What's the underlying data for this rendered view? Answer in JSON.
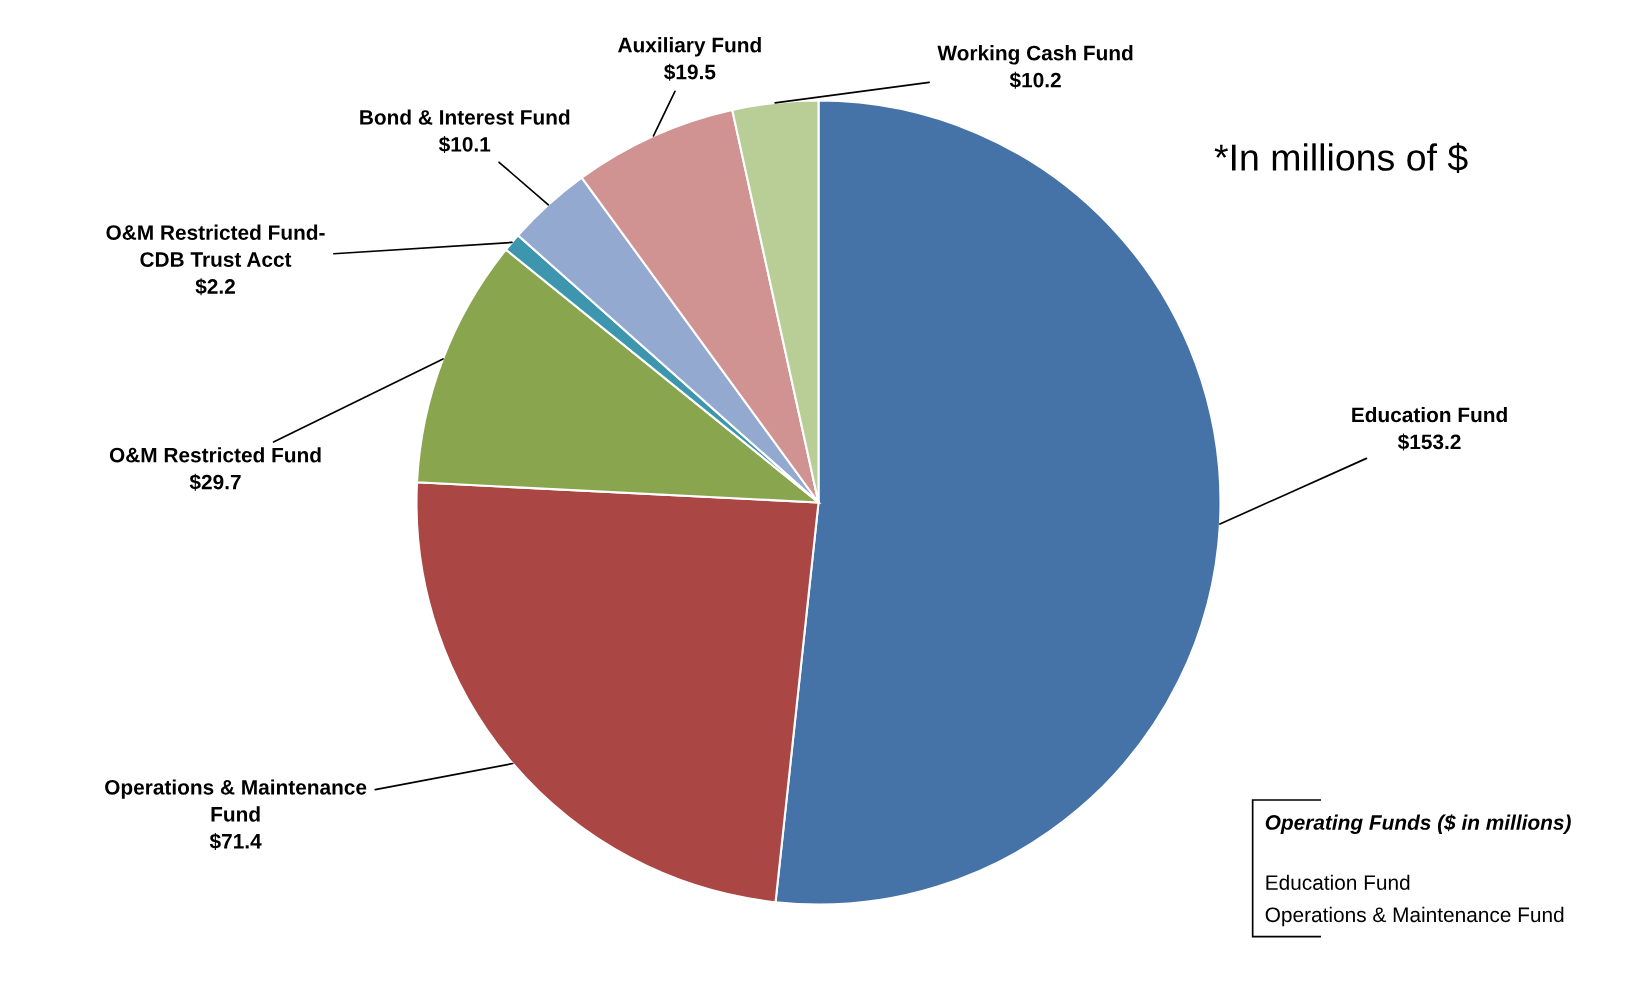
{
  "chart_data": {
    "type": "pie",
    "categories": [
      "Education Fund",
      "Operations & Maintenance\nFund",
      "O&M Restricted Fund",
      "O&M Restricted Fund-\nCDB Trust Acct",
      "Bond & Interest Fund",
      "Auxiliary Fund",
      "Working Cash Fund"
    ],
    "values": [
      153.2,
      71.4,
      29.7,
      2.2,
      10.1,
      19.5,
      10.2
    ],
    "value_labels": [
      "$153.2",
      "$71.4",
      "$29.7",
      "$2.2",
      "$10.1",
      "$19.5",
      "$10.2"
    ],
    "colors": [
      "#4572a7",
      "#aa4643",
      "#89a54e",
      "#3d96ae",
      "#93a9cf",
      "#d19392",
      "#b9cd96"
    ],
    "annotations": [
      "*In millions of $",
      "Operating Funds ($ in millions)",
      "Education Fund",
      "Operations & Maintenance Fund"
    ]
  }
}
